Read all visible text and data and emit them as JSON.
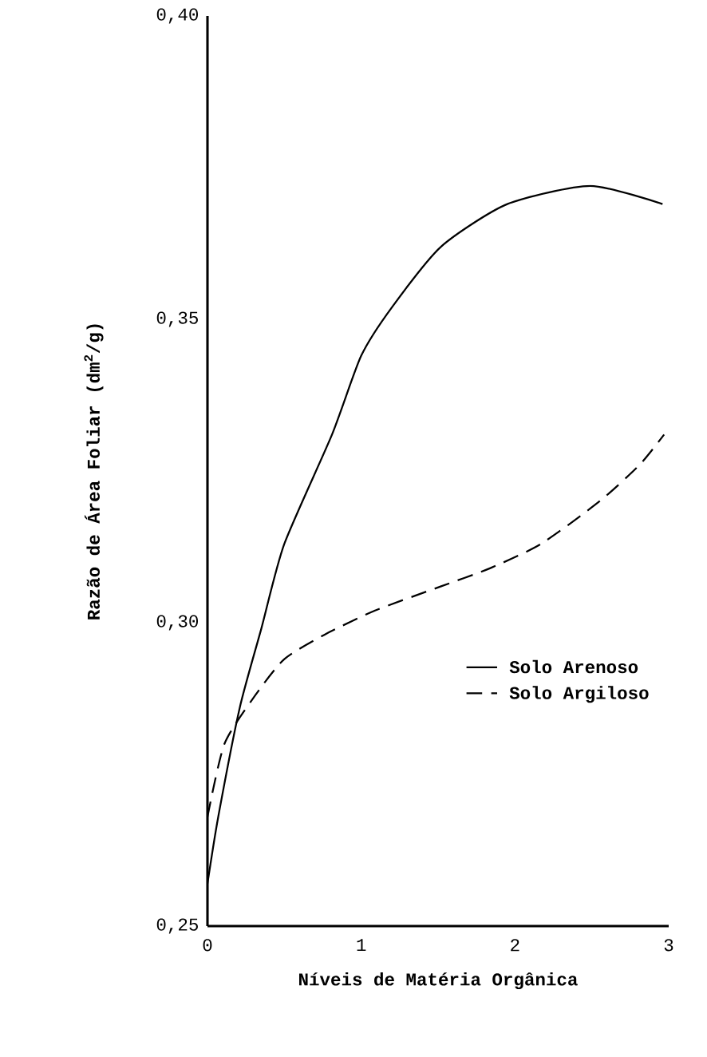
{
  "chart_data": {
    "type": "line",
    "xlabel": "Níveis de Matéria Orgânica",
    "ylabel": "Razão de Área Foliar (dm$^{2}$/g)",
    "xlim": [
      0,
      3
    ],
    "ylim": [
      0.25,
      0.4
    ],
    "xticks": [
      {
        "value": 0,
        "label": "0"
      },
      {
        "value": 1,
        "label": "1"
      },
      {
        "value": 2,
        "label": "2"
      },
      {
        "value": 3,
        "label": "3"
      }
    ],
    "yticks": [
      {
        "value": 0.25,
        "label": "0,25"
      },
      {
        "value": 0.3,
        "label": "0,30"
      },
      {
        "value": 0.35,
        "label": "0,35"
      },
      {
        "value": 0.4,
        "label": "0,40"
      }
    ],
    "legend": "right",
    "grid": false,
    "marker": "none",
    "series": [
      {
        "name": "Solo Arenoso",
        "color": "#000000",
        "line_style": "solid",
        "x": [
          0,
          0.07,
          0.21,
          0.35,
          0.5,
          0.81,
          1.0,
          1.2,
          1.52,
          1.95,
          2.49,
          2.96
        ],
        "values": [
          0.257,
          0.268,
          0.286,
          0.299,
          0.313,
          0.331,
          0.344,
          0.352,
          0.362,
          0.369,
          0.372,
          0.369
        ]
      },
      {
        "name": "Solo Argiloso",
        "color": "#000000",
        "line_style": "dashed",
        "x": [
          0,
          0.11,
          0.31,
          0.5,
          0.76,
          1.09,
          1.52,
          1.84,
          2.17,
          2.55,
          2.81,
          2.97
        ],
        "values": [
          0.268,
          0.28,
          0.288,
          0.294,
          0.298,
          0.302,
          0.306,
          0.309,
          0.313,
          0.32,
          0.326,
          0.331
        ]
      }
    ]
  }
}
